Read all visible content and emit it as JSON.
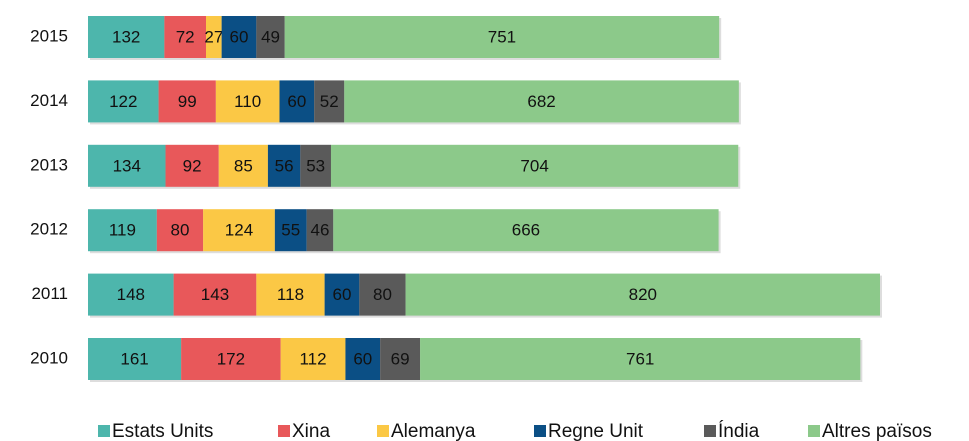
{
  "chart_data": {
    "type": "stacked-bar-horizontal",
    "categories": [
      "2015",
      "2014",
      "2013",
      "2012",
      "2011",
      "2010"
    ],
    "series": [
      {
        "name": "Estats Units",
        "color": "#4db6ac",
        "values": [
          132,
          122,
          134,
          119,
          148,
          161
        ]
      },
      {
        "name": "Xina",
        "color": "#e8585a",
        "values": [
          72,
          99,
          92,
          80,
          143,
          172
        ]
      },
      {
        "name": "Alemanya",
        "color": "#fbc845",
        "values": [
          27,
          110,
          85,
          124,
          118,
          112
        ]
      },
      {
        "name": "Regne Unit",
        "color": "#0b4f85",
        "values": [
          60,
          60,
          56,
          55,
          60,
          60
        ]
      },
      {
        "name": "Índia",
        "color": "#5a5a5a",
        "values": [
          49,
          52,
          53,
          46,
          80,
          69
        ]
      },
      {
        "name": "Altres països",
        "color": "#8cc98a",
        "values": [
          751,
          682,
          704,
          666,
          820,
          761
        ]
      }
    ],
    "legend": "bottom"
  }
}
